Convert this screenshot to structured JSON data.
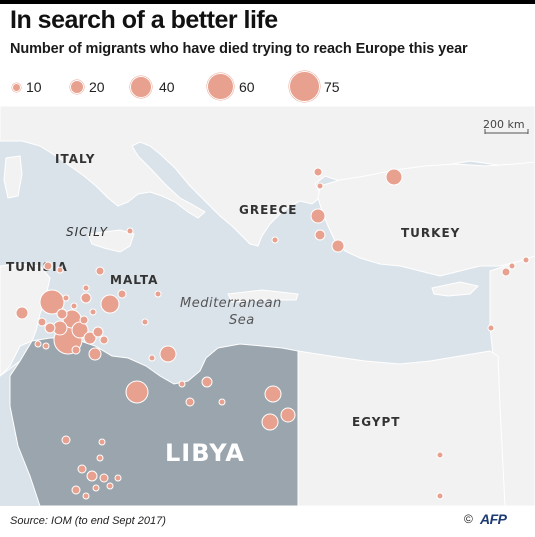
{
  "title": "In search of a better life",
  "subtitle": "Number of migrants who have died trying to reach Europe this year",
  "legend": {
    "items": [
      {
        "value": 10,
        "label": "10"
      },
      {
        "value": 20,
        "label": "20"
      },
      {
        "value": 40,
        "label": "40"
      },
      {
        "value": 60,
        "label": "60"
      },
      {
        "value": 75,
        "label": "75"
      }
    ]
  },
  "map": {
    "scale_label": "200 km",
    "labels": {
      "italy": "ITALY",
      "sicily": "SICILY",
      "greece": "GREECE",
      "turkey": "TURKEY",
      "tunisia": "TUNISIA",
      "malta": "MALTA",
      "sea_line1": "Mediterranean",
      "sea_line2": "Sea",
      "libya": "LIBYA",
      "egypt": "EGYPT"
    },
    "colors": {
      "sea": "#dbe3ea",
      "land": "#f2f2f2",
      "libya": "#9aa5ad",
      "bubble": "#e8a08f",
      "border": "#ffffff"
    }
  },
  "footer": {
    "source": "Source: IOM (to end Sept 2017)",
    "copyright": "©",
    "brand": "AFP"
  }
}
